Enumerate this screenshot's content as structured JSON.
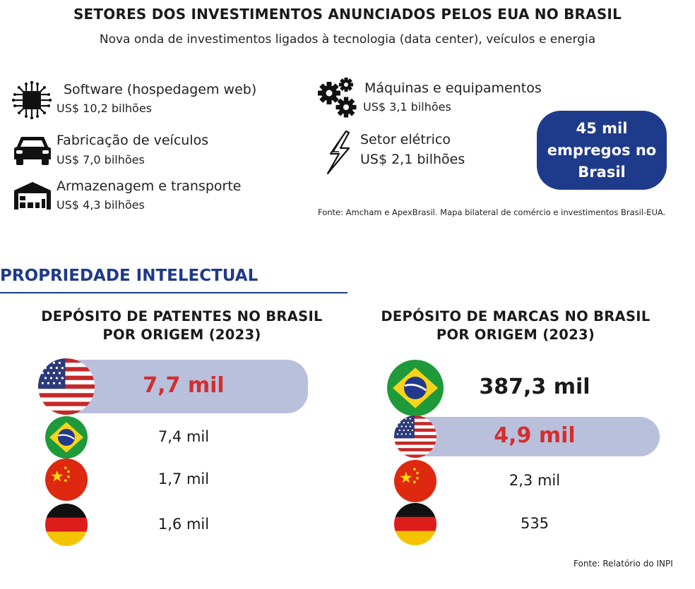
{
  "header": {
    "title": "SETORES DOS INVESTIMENTOS ANUNCIADOS PELOS EUA NO BRASIL",
    "subtitle": "Nova onda de investimentos ligados à tecnologia (data center), veículos e energia"
  },
  "sectors": [
    {
      "name": "Software (hospedagem web)",
      "value": "US$ 10,2 bilhões",
      "icon": "chip-icon"
    },
    {
      "name": "Fabricação de veículos",
      "value": "US$ 7,0 bilhões",
      "icon": "car-icon"
    },
    {
      "name": "Armazenagem e transporte",
      "value": "US$ 4,3 bilhões",
      "icon": "warehouse-icon"
    },
    {
      "name": "Máquinas e equipamentos",
      "value": "US$ 3,1 bilhões",
      "icon": "gears-icon"
    },
    {
      "name": "Setor elétrico",
      "value": "US$ 2,1 bilhões",
      "icon": "lightning-icon"
    }
  ],
  "jobs": {
    "line1": "45 mil",
    "line2": "empregos no",
    "line3": "Brasil"
  },
  "source_investments": "Fonte: Amcham e ApexBrasil. Mapa bilateral de comércio e investimentos Brasil-EUA.",
  "section_title": "PROPRIEDADE INTELECTUAL",
  "colors": {
    "accent": "#1e3a8a",
    "highlight_bar": "#b8c0dc",
    "highlight_text": "#d32f2f"
  },
  "chart_data": [
    {
      "type": "table",
      "title_line1": "DEPÓSITO DE PATENTES NO BRASIL",
      "title_line2": "POR ORIGEM (2023)",
      "rows": [
        {
          "origin_flag": "usa-flag-icon",
          "label": "7,7 mil",
          "value": 7700,
          "highlight": true
        },
        {
          "origin_flag": "brazil-flag-icon",
          "label": "7,4 mil",
          "value": 7400,
          "highlight": false
        },
        {
          "origin_flag": "china-flag-icon",
          "label": "1,7 mil",
          "value": 1700,
          "highlight": false
        },
        {
          "origin_flag": "germany-flag-icon",
          "label": "1,6 mil",
          "value": 1600,
          "highlight": false
        }
      ]
    },
    {
      "type": "table",
      "title_line1": "DEPÓSITO DE MARCAS NO BRASIL",
      "title_line2": "POR ORIGEM (2023)",
      "rows": [
        {
          "origin_flag": "brazil-flag-icon",
          "label": "387,3 mil",
          "value": 387300,
          "highlight": false
        },
        {
          "origin_flag": "usa-flag-icon",
          "label": "4,9 mil",
          "value": 4900,
          "highlight": true
        },
        {
          "origin_flag": "china-flag-icon",
          "label": "2,3 mil",
          "value": 2300,
          "highlight": false
        },
        {
          "origin_flag": "germany-flag-icon",
          "label": "535",
          "value": 535,
          "highlight": false
        }
      ]
    }
  ],
  "source_ip": "Fonte: Relatório do INPI"
}
